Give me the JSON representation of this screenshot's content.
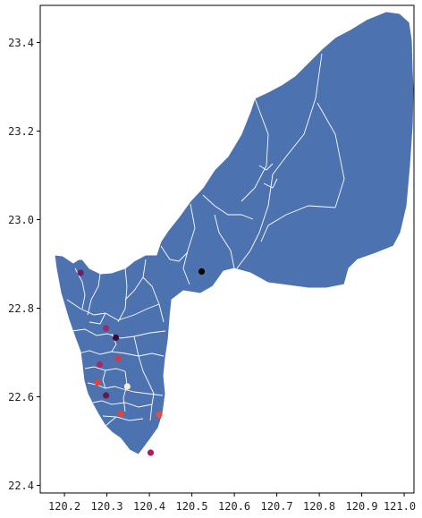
{
  "map": {
    "x_ticks": [
      "120.2",
      "120.3",
      "120.4",
      "120.5",
      "120.6",
      "120.7",
      "120.8",
      "120.9",
      "121.0"
    ],
    "y_ticks": [
      "23.4",
      "23.2",
      "23.0",
      "22.8",
      "22.6",
      "22.4"
    ],
    "xlim": [
      120.15,
      121.03
    ],
    "ylim": [
      22.39,
      23.48
    ],
    "land_color": "#4c72b0",
    "boundary_color": "#ffffff",
    "points": [
      {
        "lon": 120.53,
        "lat": 22.885,
        "color": "#000000"
      },
      {
        "lon": 120.245,
        "lat": 22.882,
        "color": "#6b1f6b"
      },
      {
        "lon": 120.305,
        "lat": 22.758,
        "color": "#a3286a"
      },
      {
        "lon": 120.328,
        "lat": 22.737,
        "color": "#3d0b36"
      },
      {
        "lon": 120.333,
        "lat": 22.69,
        "color": "#d63a4a"
      },
      {
        "lon": 120.29,
        "lat": 22.677,
        "color": "#a32a6a"
      },
      {
        "lon": 120.285,
        "lat": 22.637,
        "color": "#e8413c"
      },
      {
        "lon": 120.305,
        "lat": 22.608,
        "color": "#6a1a4a"
      },
      {
        "lon": 120.355,
        "lat": 22.628,
        "color": "#faebdd"
      },
      {
        "lon": 120.34,
        "lat": 22.567,
        "color": "#e8413c"
      },
      {
        "lon": 120.43,
        "lat": 22.565,
        "color": "#f0493a"
      },
      {
        "lon": 120.41,
        "lat": 22.48,
        "color": "#b5195a"
      }
    ]
  }
}
